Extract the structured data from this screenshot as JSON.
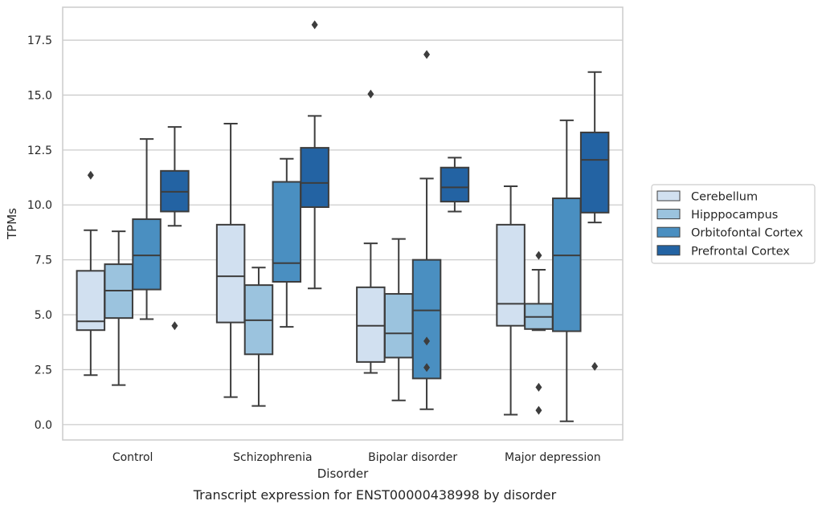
{
  "chart_data": {
    "type": "box",
    "caption": "Transcript expression for ENST00000438998 by disorder",
    "xlabel": "Disorder",
    "ylabel": "TPMs",
    "ylim": [
      -0.7,
      19.0
    ],
    "yticks": [
      0.0,
      2.5,
      5.0,
      7.5,
      10.0,
      12.5,
      15.0,
      17.5
    ],
    "ytick_labels": [
      "0.0",
      "2.5",
      "5.0",
      "7.5",
      "10.0",
      "12.5",
      "15.0",
      "17.5"
    ],
    "grid": "horizontal",
    "legend_position": "right",
    "categories": [
      "Control",
      "Schizophrenia",
      "Bipolar disorder",
      "Major depression"
    ],
    "series": [
      {
        "name": "Cerebellum",
        "color": "#d1e0f0",
        "boxes": [
          {
            "whisker_low": 2.25,
            "q1": 4.3,
            "median": 4.7,
            "q3": 7.0,
            "whisker_high": 8.85,
            "outliers": [
              11.35
            ]
          },
          {
            "whisker_low": 1.25,
            "q1": 4.65,
            "median": 6.75,
            "q3": 9.1,
            "whisker_high": 13.7,
            "outliers": []
          },
          {
            "whisker_low": 2.35,
            "q1": 2.85,
            "median": 4.5,
            "q3": 6.25,
            "whisker_high": 8.25,
            "outliers": [
              15.05
            ]
          },
          {
            "whisker_low": 0.45,
            "q1": 4.5,
            "median": 5.5,
            "q3": 9.1,
            "whisker_high": 10.85,
            "outliers": []
          }
        ]
      },
      {
        "name": "Hipppocampus",
        "color": "#9bc3de",
        "boxes": [
          {
            "whisker_low": 1.8,
            "q1": 4.85,
            "median": 6.1,
            "q3": 7.3,
            "whisker_high": 8.8,
            "outliers": []
          },
          {
            "whisker_low": 0.85,
            "q1": 3.2,
            "median": 4.75,
            "q3": 6.35,
            "whisker_high": 7.15,
            "outliers": []
          },
          {
            "whisker_low": 1.1,
            "q1": 3.05,
            "median": 4.15,
            "q3": 5.95,
            "whisker_high": 8.45,
            "outliers": []
          },
          {
            "whisker_low": 4.3,
            "q1": 4.35,
            "median": 4.9,
            "q3": 5.5,
            "whisker_high": 7.05,
            "outliers": [
              7.7,
              1.7,
              0.65
            ]
          }
        ]
      },
      {
        "name": "Orbitofontal Cortex",
        "color": "#4a8fc1",
        "boxes": [
          {
            "whisker_low": 4.8,
            "q1": 6.15,
            "median": 7.7,
            "q3": 9.35,
            "whisker_high": 13.0,
            "outliers": []
          },
          {
            "whisker_low": 4.45,
            "q1": 6.5,
            "median": 7.35,
            "q3": 11.05,
            "whisker_high": 12.1,
            "outliers": []
          },
          {
            "whisker_low": 0.7,
            "q1": 2.1,
            "median": 5.2,
            "q3": 7.5,
            "whisker_high": 11.2,
            "outliers": [
              16.85,
              3.8,
              2.6
            ]
          },
          {
            "whisker_low": 0.15,
            "q1": 4.25,
            "median": 7.7,
            "q3": 10.3,
            "whisker_high": 13.85,
            "outliers": []
          }
        ]
      },
      {
        "name": "Prefrontal Cortex",
        "color": "#2363a3",
        "boxes": [
          {
            "whisker_low": 9.05,
            "q1": 9.7,
            "median": 10.6,
            "q3": 11.55,
            "whisker_high": 13.55,
            "outliers": [
              4.5
            ]
          },
          {
            "whisker_low": 6.2,
            "q1": 9.9,
            "median": 11.0,
            "q3": 12.6,
            "whisker_high": 14.05,
            "outliers": [
              18.2
            ]
          },
          {
            "whisker_low": 9.7,
            "q1": 10.15,
            "median": 10.8,
            "q3": 11.7,
            "whisker_high": 12.15,
            "outliers": []
          },
          {
            "whisker_low": 9.2,
            "q1": 9.65,
            "median": 12.05,
            "q3": 13.3,
            "whisker_high": 16.05,
            "outliers": [
              2.65
            ]
          }
        ]
      }
    ]
  }
}
